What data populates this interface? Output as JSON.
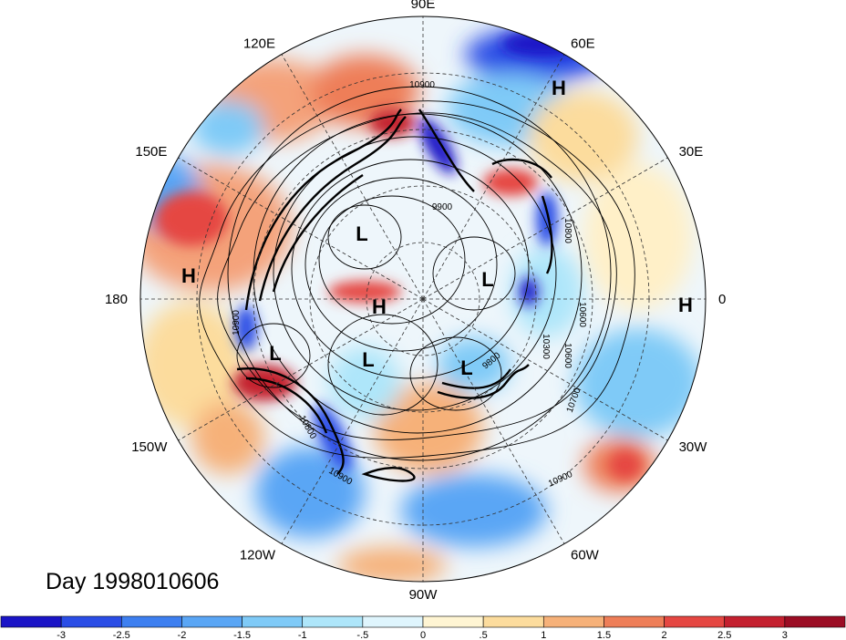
{
  "map": {
    "projection": "north-polar-stereographic",
    "longitude_labels": [
      {
        "text": "90E",
        "lon": 90
      },
      {
        "text": "60E",
        "lon": 60
      },
      {
        "text": "30E",
        "lon": 30
      },
      {
        "text": "0",
        "lon": 0
      },
      {
        "text": "30W",
        "lon": -30
      },
      {
        "text": "60W",
        "lon": -60
      },
      {
        "text": "90W",
        "lon": -90
      },
      {
        "text": "120W",
        "lon": -120
      },
      {
        "text": "150W",
        "lon": -150
      },
      {
        "text": "180",
        "lon": 180
      },
      {
        "text": "150E",
        "lon": 150
      },
      {
        "text": "120E",
        "lon": 120
      }
    ],
    "pressure_centers": [
      {
        "text": "H",
        "type": "high",
        "region": "northern Siberia"
      },
      {
        "text": "L",
        "type": "low",
        "region": "East Siberian Arctic"
      },
      {
        "text": "H",
        "type": "high",
        "region": "central Arctic"
      },
      {
        "text": "L",
        "type": "low",
        "region": "Barents Sea"
      },
      {
        "text": "L",
        "type": "low",
        "region": "Canadian Arctic Archipelago"
      },
      {
        "text": "L",
        "type": "low",
        "region": "Labrador Sea / south Greenland"
      },
      {
        "text": "L",
        "type": "low",
        "region": "Bering Sea"
      },
      {
        "text": "H",
        "type": "high",
        "region": "central North Pacific"
      },
      {
        "text": "H",
        "type": "high",
        "region": "eastern North Atlantic"
      }
    ],
    "contour_labels": [
      "10900",
      "9900",
      "10800",
      "10600",
      "10300",
      "10600",
      "10700",
      "10900",
      "10800",
      "10900",
      "9800",
      "10900"
    ],
    "positive_color": "#c8102e",
    "negative_color": "#1c2fd6",
    "contour_color": "#000000"
  },
  "day_label": "Day 1998010606",
  "colorbar": {
    "ticks": [
      "-3",
      "-2.5",
      "-2",
      "-1.5",
      "-1",
      "-.5",
      "0",
      ".5",
      "1",
      "1.5",
      "2",
      "2.5",
      "3"
    ],
    "colors": [
      "#1a14c6",
      "#2a4de6",
      "#3d7ff0",
      "#5aa6f5",
      "#7fcaf7",
      "#aee6fa",
      "#dff5fd",
      "#fff5d3",
      "#fcdc9d",
      "#f6b179",
      "#ee7e58",
      "#e54742",
      "#c4202f",
      "#9b0d24"
    ]
  }
}
